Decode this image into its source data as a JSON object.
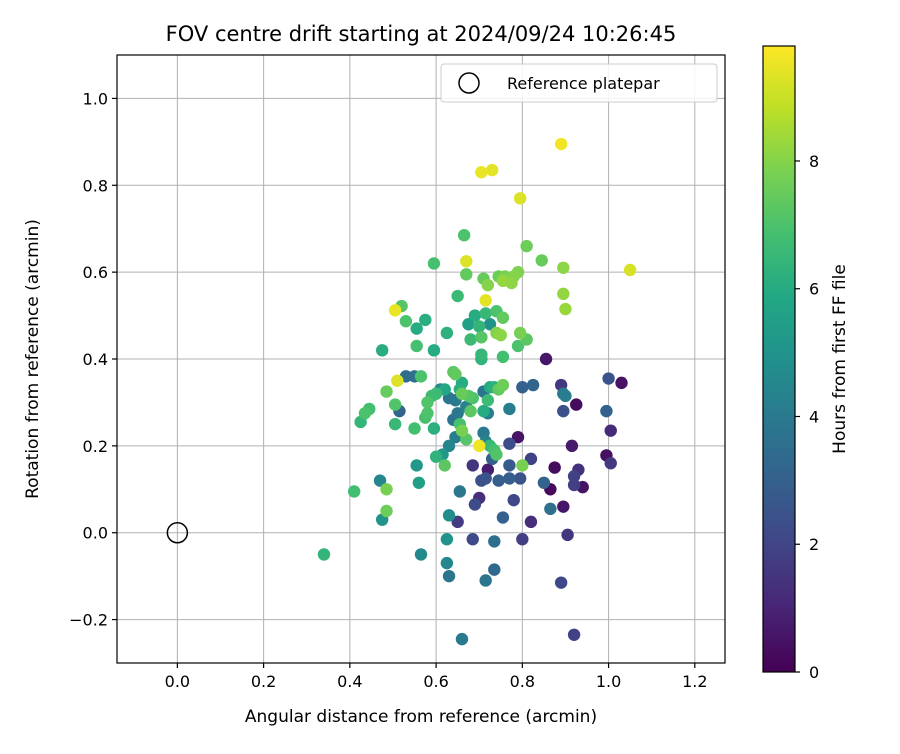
{
  "chart_data": {
    "type": "scatter",
    "title": "FOV centre drift starting at 2024/09/24 10:26:45",
    "xlabel": "Angular distance from reference (arcmin)",
    "ylabel": "Rotation from reference (arcmin)",
    "xlim": [
      -0.14,
      1.27
    ],
    "ylim": [
      -0.3,
      1.1
    ],
    "xticks": [
      0.0,
      0.2,
      0.4,
      0.6,
      0.8,
      1.0,
      1.2
    ],
    "xtick_labels": [
      "0.0",
      "0.2",
      "0.4",
      "0.6",
      "0.8",
      "1.0",
      "1.2"
    ],
    "yticks": [
      -0.2,
      0.0,
      0.2,
      0.4,
      0.6,
      0.8,
      1.0
    ],
    "ytick_labels": [
      "−0.2",
      "0.0",
      "0.2",
      "0.4",
      "0.6",
      "0.8",
      "1.0"
    ],
    "grid": true,
    "legend": {
      "placement": "top-right",
      "entries": [
        "Reference platepar"
      ]
    },
    "reference_point": {
      "x": 0.0,
      "y": 0.0
    },
    "colorbar": {
      "label": "Hours from first FF file",
      "min": 0,
      "max": 9.8,
      "ticks": [
        0,
        2,
        4,
        6,
        8
      ],
      "tick_labels": [
        "0",
        "2",
        "4",
        "6",
        "8"
      ],
      "colormap": "viridis"
    },
    "points": [
      {
        "x": 0.89,
        "y": 0.895,
        "h": 9.6
      },
      {
        "x": 0.705,
        "y": 0.83,
        "h": 9.5
      },
      {
        "x": 0.73,
        "y": 0.835,
        "h": 9.4
      },
      {
        "x": 0.795,
        "y": 0.77,
        "h": 9.3
      },
      {
        "x": 1.05,
        "y": 0.605,
        "h": 9.2
      },
      {
        "x": 0.67,
        "y": 0.625,
        "h": 9.3
      },
      {
        "x": 0.715,
        "y": 0.535,
        "h": 9.4
      },
      {
        "x": 0.505,
        "y": 0.512,
        "h": 9.5
      },
      {
        "x": 0.51,
        "y": 0.35,
        "h": 9.3
      },
      {
        "x": 0.7,
        "y": 0.2,
        "h": 9.6
      },
      {
        "x": 0.665,
        "y": 0.685,
        "h": 7.0
      },
      {
        "x": 0.81,
        "y": 0.66,
        "h": 7.6
      },
      {
        "x": 0.845,
        "y": 0.627,
        "h": 7.5
      },
      {
        "x": 0.895,
        "y": 0.61,
        "h": 8.1
      },
      {
        "x": 0.895,
        "y": 0.55,
        "h": 8.2
      },
      {
        "x": 0.9,
        "y": 0.515,
        "h": 8.3
      },
      {
        "x": 0.595,
        "y": 0.62,
        "h": 6.9
      },
      {
        "x": 0.67,
        "y": 0.595,
        "h": 7.4
      },
      {
        "x": 0.71,
        "y": 0.585,
        "h": 7.5
      },
      {
        "x": 0.72,
        "y": 0.57,
        "h": 8.0
      },
      {
        "x": 0.745,
        "y": 0.59,
        "h": 7.6
      },
      {
        "x": 0.76,
        "y": 0.59,
        "h": 7.8
      },
      {
        "x": 0.78,
        "y": 0.59,
        "h": 8.0
      },
      {
        "x": 0.79,
        "y": 0.6,
        "h": 7.9
      },
      {
        "x": 0.775,
        "y": 0.575,
        "h": 8.1
      },
      {
        "x": 0.755,
        "y": 0.58,
        "h": 8.2
      },
      {
        "x": 0.74,
        "y": 0.51,
        "h": 7.0
      },
      {
        "x": 0.755,
        "y": 0.495,
        "h": 7.4
      },
      {
        "x": 0.725,
        "y": 0.48,
        "h": 5.0
      },
      {
        "x": 0.69,
        "y": 0.5,
        "h": 6.0
      },
      {
        "x": 0.7,
        "y": 0.475,
        "h": 6.4
      },
      {
        "x": 0.715,
        "y": 0.505,
        "h": 6.5
      },
      {
        "x": 0.675,
        "y": 0.48,
        "h": 5.5
      },
      {
        "x": 0.68,
        "y": 0.445,
        "h": 6.6
      },
      {
        "x": 0.705,
        "y": 0.45,
        "h": 7.2
      },
      {
        "x": 0.74,
        "y": 0.46,
        "h": 8.0
      },
      {
        "x": 0.75,
        "y": 0.455,
        "h": 8.1
      },
      {
        "x": 0.795,
        "y": 0.46,
        "h": 7.8
      },
      {
        "x": 0.81,
        "y": 0.445,
        "h": 7.3
      },
      {
        "x": 0.79,
        "y": 0.43,
        "h": 7.0
      },
      {
        "x": 0.755,
        "y": 0.405,
        "h": 6.8
      },
      {
        "x": 0.705,
        "y": 0.41,
        "h": 6.5
      },
      {
        "x": 0.705,
        "y": 0.4,
        "h": 6.3
      },
      {
        "x": 0.625,
        "y": 0.46,
        "h": 6.2
      },
      {
        "x": 0.575,
        "y": 0.49,
        "h": 6.1
      },
      {
        "x": 0.555,
        "y": 0.47,
        "h": 6.0
      },
      {
        "x": 0.53,
        "y": 0.487,
        "h": 7.0
      },
      {
        "x": 0.52,
        "y": 0.522,
        "h": 7.2
      },
      {
        "x": 0.65,
        "y": 0.545,
        "h": 6.6
      },
      {
        "x": 0.555,
        "y": 0.43,
        "h": 6.9
      },
      {
        "x": 0.595,
        "y": 0.42,
        "h": 6.0
      },
      {
        "x": 0.475,
        "y": 0.42,
        "h": 6.1
      },
      {
        "x": 0.565,
        "y": 0.36,
        "h": 7.0
      },
      {
        "x": 0.55,
        "y": 0.36,
        "h": 3.6
      },
      {
        "x": 0.53,
        "y": 0.36,
        "h": 3.5
      },
      {
        "x": 0.485,
        "y": 0.325,
        "h": 7.5
      },
      {
        "x": 0.445,
        "y": 0.285,
        "h": 6.8
      },
      {
        "x": 0.435,
        "y": 0.275,
        "h": 7.0
      },
      {
        "x": 0.425,
        "y": 0.255,
        "h": 6.4
      },
      {
        "x": 0.505,
        "y": 0.295,
        "h": 7.1
      },
      {
        "x": 0.515,
        "y": 0.28,
        "h": 3.2
      },
      {
        "x": 0.505,
        "y": 0.25,
        "h": 6.5
      },
      {
        "x": 0.55,
        "y": 0.24,
        "h": 6.8
      },
      {
        "x": 0.575,
        "y": 0.265,
        "h": 6.9
      },
      {
        "x": 0.58,
        "y": 0.275,
        "h": 7.0
      },
      {
        "x": 0.58,
        "y": 0.3,
        "h": 7.1
      },
      {
        "x": 0.59,
        "y": 0.315,
        "h": 6.7
      },
      {
        "x": 0.6,
        "y": 0.32,
        "h": 6.6
      },
      {
        "x": 0.61,
        "y": 0.33,
        "h": 4.5
      },
      {
        "x": 0.62,
        "y": 0.33,
        "h": 5.8
      },
      {
        "x": 0.64,
        "y": 0.37,
        "h": 7.3
      },
      {
        "x": 0.645,
        "y": 0.365,
        "h": 7.4
      },
      {
        "x": 0.66,
        "y": 0.345,
        "h": 6.0
      },
      {
        "x": 0.655,
        "y": 0.33,
        "h": 6.1
      },
      {
        "x": 0.63,
        "y": 0.31,
        "h": 3.8
      },
      {
        "x": 0.645,
        "y": 0.305,
        "h": 4.0
      },
      {
        "x": 0.66,
        "y": 0.32,
        "h": 7.5
      },
      {
        "x": 0.675,
        "y": 0.315,
        "h": 7.2
      },
      {
        "x": 0.685,
        "y": 0.31,
        "h": 7.0
      },
      {
        "x": 0.67,
        "y": 0.29,
        "h": 4.3
      },
      {
        "x": 0.68,
        "y": 0.28,
        "h": 7.3
      },
      {
        "x": 0.65,
        "y": 0.275,
        "h": 3.9
      },
      {
        "x": 0.64,
        "y": 0.26,
        "h": 3.7
      },
      {
        "x": 0.655,
        "y": 0.25,
        "h": 6.9
      },
      {
        "x": 0.66,
        "y": 0.235,
        "h": 7.8
      },
      {
        "x": 0.645,
        "y": 0.22,
        "h": 4.2
      },
      {
        "x": 0.67,
        "y": 0.215,
        "h": 7.2
      },
      {
        "x": 0.63,
        "y": 0.2,
        "h": 4.4
      },
      {
        "x": 0.615,
        "y": 0.18,
        "h": 5.2
      },
      {
        "x": 0.62,
        "y": 0.155,
        "h": 7.3
      },
      {
        "x": 0.595,
        "y": 0.24,
        "h": 6.2
      },
      {
        "x": 0.71,
        "y": 0.325,
        "h": 3.8
      },
      {
        "x": 0.725,
        "y": 0.335,
        "h": 6.0
      },
      {
        "x": 0.735,
        "y": 0.335,
        "h": 6.2
      },
      {
        "x": 0.72,
        "y": 0.305,
        "h": 6.7
      },
      {
        "x": 0.71,
        "y": 0.28,
        "h": 6.0
      },
      {
        "x": 0.72,
        "y": 0.275,
        "h": 4.2
      },
      {
        "x": 0.745,
        "y": 0.33,
        "h": 7.4
      },
      {
        "x": 0.755,
        "y": 0.34,
        "h": 7.6
      },
      {
        "x": 0.71,
        "y": 0.23,
        "h": 4.0
      },
      {
        "x": 0.715,
        "y": 0.21,
        "h": 4.3
      },
      {
        "x": 0.735,
        "y": 0.19,
        "h": 6.9
      },
      {
        "x": 0.725,
        "y": 0.2,
        "h": 6.5
      },
      {
        "x": 0.74,
        "y": 0.18,
        "h": 7.1
      },
      {
        "x": 0.77,
        "y": 0.285,
        "h": 4.1
      },
      {
        "x": 0.8,
        "y": 0.335,
        "h": 3.0
      },
      {
        "x": 0.825,
        "y": 0.34,
        "h": 3.2
      },
      {
        "x": 0.855,
        "y": 0.4,
        "h": 0.6
      },
      {
        "x": 0.77,
        "y": 0.205,
        "h": 2.3
      },
      {
        "x": 0.79,
        "y": 0.22,
        "h": 0.5
      },
      {
        "x": 0.77,
        "y": 0.155,
        "h": 2.8
      },
      {
        "x": 0.8,
        "y": 0.155,
        "h": 7.8
      },
      {
        "x": 0.795,
        "y": 0.125,
        "h": 2.5
      },
      {
        "x": 0.77,
        "y": 0.125,
        "h": 2.9
      },
      {
        "x": 0.82,
        "y": 0.17,
        "h": 1.9
      },
      {
        "x": 0.73,
        "y": 0.17,
        "h": 3.0
      },
      {
        "x": 0.72,
        "y": 0.145,
        "h": 0.8
      },
      {
        "x": 0.685,
        "y": 0.155,
        "h": 1.5
      },
      {
        "x": 0.705,
        "y": 0.12,
        "h": 2.4
      },
      {
        "x": 0.715,
        "y": 0.125,
        "h": 2.5
      },
      {
        "x": 0.745,
        "y": 0.12,
        "h": 2.9
      },
      {
        "x": 0.78,
        "y": 0.075,
        "h": 2.1
      },
      {
        "x": 0.7,
        "y": 0.08,
        "h": 1.3
      },
      {
        "x": 0.69,
        "y": 0.065,
        "h": 2.2
      },
      {
        "x": 0.655,
        "y": 0.095,
        "h": 3.9
      },
      {
        "x": 0.63,
        "y": 0.04,
        "h": 4.8
      },
      {
        "x": 0.65,
        "y": 0.025,
        "h": 1.7
      },
      {
        "x": 0.755,
        "y": 0.035,
        "h": 3.0
      },
      {
        "x": 0.82,
        "y": 0.025,
        "h": 1.3
      },
      {
        "x": 0.865,
        "y": 0.055,
        "h": 3.6
      },
      {
        "x": 0.85,
        "y": 0.115,
        "h": 3.1
      },
      {
        "x": 0.865,
        "y": 0.1,
        "h": 0.2
      },
      {
        "x": 0.875,
        "y": 0.15,
        "h": 0.3
      },
      {
        "x": 0.895,
        "y": 0.06,
        "h": 0.6
      },
      {
        "x": 0.905,
        "y": -0.005,
        "h": 1.5
      },
      {
        "x": 0.915,
        "y": 0.2,
        "h": 0.7
      },
      {
        "x": 0.92,
        "y": 0.13,
        "h": 1.9
      },
      {
        "x": 0.92,
        "y": 0.11,
        "h": 1.8
      },
      {
        "x": 0.93,
        "y": 0.145,
        "h": 1.4
      },
      {
        "x": 0.94,
        "y": 0.105,
        "h": 0.5
      },
      {
        "x": 0.895,
        "y": 0.28,
        "h": 2.4
      },
      {
        "x": 0.89,
        "y": 0.34,
        "h": 1.6
      },
      {
        "x": 0.895,
        "y": 0.32,
        "h": 4.0
      },
      {
        "x": 0.9,
        "y": 0.315,
        "h": 4.1
      },
      {
        "x": 0.925,
        "y": 0.295,
        "h": 0.3
      },
      {
        "x": 0.995,
        "y": 0.28,
        "h": 3.0
      },
      {
        "x": 1.0,
        "y": 0.355,
        "h": 2.5
      },
      {
        "x": 1.03,
        "y": 0.345,
        "h": 0.5
      },
      {
        "x": 1.005,
        "y": 0.235,
        "h": 1.2
      },
      {
        "x": 0.995,
        "y": 0.178,
        "h": 0.4
      },
      {
        "x": 1.005,
        "y": 0.16,
        "h": 1.6
      },
      {
        "x": 0.625,
        "y": -0.015,
        "h": 5.0
      },
      {
        "x": 0.625,
        "y": -0.07,
        "h": 4.5
      },
      {
        "x": 0.63,
        "y": -0.1,
        "h": 3.8
      },
      {
        "x": 0.565,
        "y": -0.05,
        "h": 4.6
      },
      {
        "x": 0.685,
        "y": -0.015,
        "h": 2.2
      },
      {
        "x": 0.735,
        "y": -0.02,
        "h": 3.5
      },
      {
        "x": 0.8,
        "y": -0.015,
        "h": 1.8
      },
      {
        "x": 0.735,
        "y": -0.085,
        "h": 3.3
      },
      {
        "x": 0.715,
        "y": -0.11,
        "h": 3.8
      },
      {
        "x": 0.66,
        "y": -0.245,
        "h": 4.0
      },
      {
        "x": 0.89,
        "y": -0.115,
        "h": 2.1
      },
      {
        "x": 0.92,
        "y": -0.235,
        "h": 1.9
      },
      {
        "x": 0.34,
        "y": -0.05,
        "h": 6.4
      },
      {
        "x": 0.41,
        "y": 0.095,
        "h": 6.8
      },
      {
        "x": 0.47,
        "y": 0.12,
        "h": 4.5
      },
      {
        "x": 0.485,
        "y": 0.1,
        "h": 7.8
      },
      {
        "x": 0.475,
        "y": 0.03,
        "h": 5.0
      },
      {
        "x": 0.485,
        "y": 0.05,
        "h": 7.6
      },
      {
        "x": 0.555,
        "y": 0.155,
        "h": 5.2
      },
      {
        "x": 0.56,
        "y": 0.115,
        "h": 5.5
      },
      {
        "x": 0.6,
        "y": 0.175,
        "h": 6.3
      }
    ]
  }
}
